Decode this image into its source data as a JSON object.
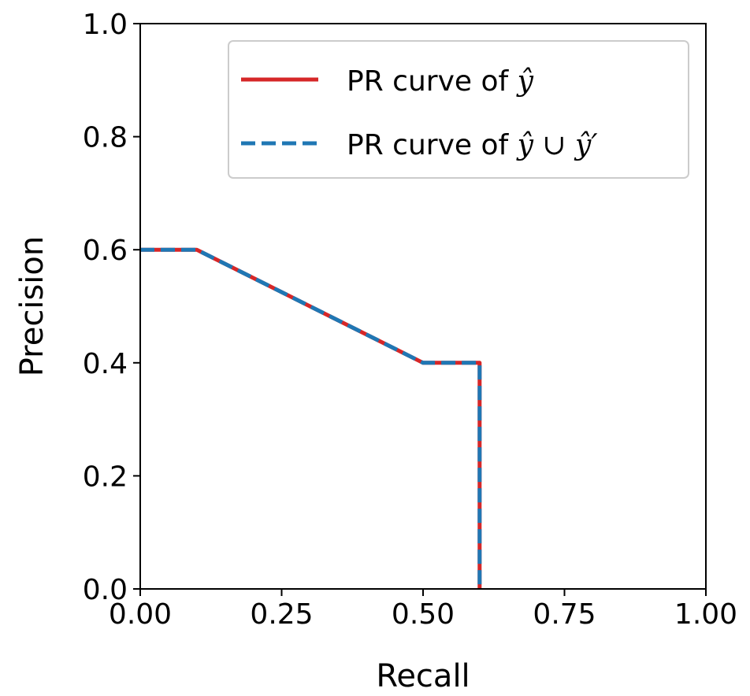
{
  "chart_data": {
    "type": "line",
    "xlabel": "Recall",
    "ylabel": "Precision",
    "xlim": [
      0.0,
      1.0
    ],
    "ylim": [
      0.0,
      1.0
    ],
    "xticks": [
      "0.00",
      "0.25",
      "0.50",
      "0.75",
      "1.00"
    ],
    "yticks": [
      "0.0",
      "0.2",
      "0.4",
      "0.6",
      "0.8",
      "1.0"
    ],
    "grid": false,
    "legend_position": "top-right",
    "series": [
      {
        "name": "PR curve of ŷ",
        "style": "solid",
        "color": "#d62728",
        "x": [
          0.0,
          0.1,
          0.5,
          0.6,
          0.6
        ],
        "y": [
          0.6,
          0.6,
          0.4,
          0.4,
          0.0
        ]
      },
      {
        "name": "PR curve of ŷ ∪ ŷ′",
        "style": "dashed",
        "color": "#1f77b4",
        "x": [
          0.0,
          0.1,
          0.5,
          0.6,
          0.6
        ],
        "y": [
          0.6,
          0.6,
          0.4,
          0.4,
          0.0
        ]
      }
    ]
  }
}
